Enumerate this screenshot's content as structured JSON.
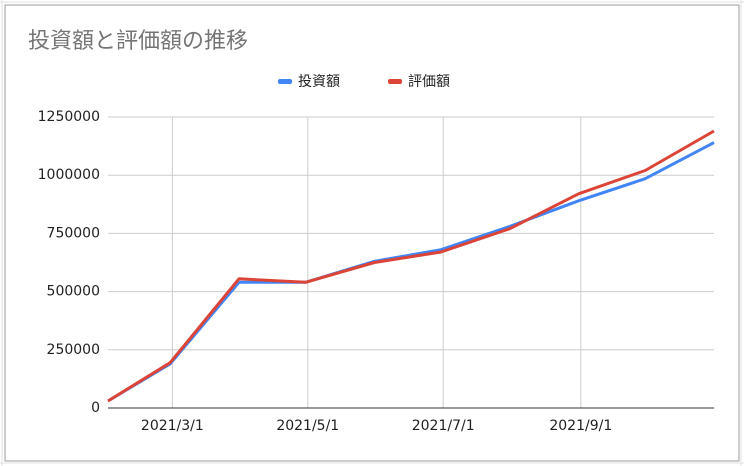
{
  "chart_data": {
    "type": "line",
    "title": "投資額と評価額の推移",
    "x": [
      "2021/1/31",
      "2021/2/28",
      "2021/3/31",
      "2021/4/30",
      "2021/5/31",
      "2021/6/30",
      "2021/7/31",
      "2021/8/31",
      "2021/9/30",
      "2021/10/31"
    ],
    "series": [
      {
        "name": "投資額",
        "color": "#4285f4",
        "values": [
          30000,
          190000,
          540000,
          540000,
          630000,
          680000,
          780000,
          890000,
          985000,
          1140000
        ]
      },
      {
        "name": "評価額",
        "color": "#db4437",
        "values": [
          30000,
          195000,
          555000,
          540000,
          625000,
          670000,
          770000,
          920000,
          1020000,
          1190000
        ]
      }
    ],
    "xlim": [
      "2021/1/31",
      "2021/10/31"
    ],
    "xticks": [
      "2021/3/1",
      "2021/5/1",
      "2021/7/1",
      "2021/9/1"
    ],
    "ylim": [
      0,
      1250000
    ],
    "yticks": [
      0,
      250000,
      500000,
      750000,
      1000000,
      1250000
    ],
    "grid": true,
    "legend": "top"
  }
}
